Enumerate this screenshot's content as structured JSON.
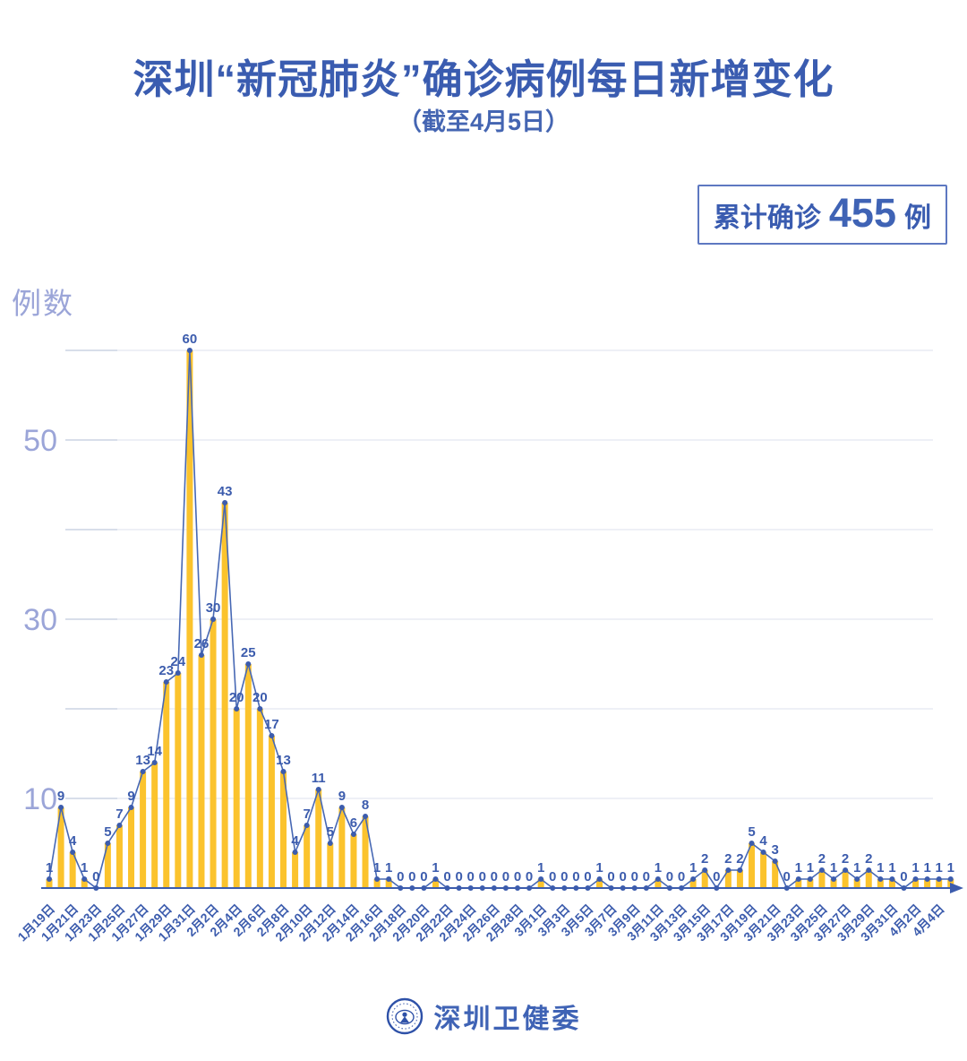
{
  "title": "深圳“新冠肺炎”确诊病例每日新增变化",
  "subtitle": "（截至4月5日）",
  "badge": {
    "prefix": "累计确诊",
    "number": "455",
    "suffix": "例"
  },
  "footer": {
    "org_name": "深圳卫健委",
    "logo": "shenzhen-health-commission-emblem"
  },
  "colors": {
    "accent_blue": "#3c5cad",
    "line_blue": "#4768b4",
    "bar_yellow": "#fbc32d",
    "axis_label_light": "#9ba5d8",
    "gridline": "#e9ecf3",
    "grid_dash": "#d5dae8"
  },
  "chart_data": {
    "type": "bar",
    "overlay": "line",
    "title": "深圳“新冠肺炎”确诊病例每日新增变化",
    "subtitle": "（截至4月5日）",
    "ylabel": "例数",
    "ylim": [
      0,
      62
    ],
    "yticks": [
      10,
      30,
      50
    ],
    "gridline_values": [
      10,
      20,
      30,
      40,
      50,
      60
    ],
    "legend": "none",
    "x_label_every": 2,
    "x_tick_labels": [
      "1月19日",
      "1月21日",
      "1月23日",
      "1月25日",
      "1月27日",
      "1月29日",
      "1月31日",
      "2月2日",
      "2月4日",
      "2月6日",
      "2月8日",
      "2月10日",
      "2月12日",
      "2月14日",
      "2月16日",
      "2月18日",
      "2月20日",
      "2月22日",
      "2月24日",
      "2月26日",
      "2月28日",
      "3月1日",
      "3月3日",
      "3月5日",
      "3月7日",
      "3月9日",
      "3月11日",
      "3月13日",
      "3月15日",
      "3月17日",
      "3月19日",
      "3月21日",
      "3月23日",
      "3月25日",
      "3月27日",
      "3月29日",
      "3月31日",
      "4月2日",
      "4月4日"
    ],
    "values": [
      1,
      9,
      4,
      1,
      0,
      5,
      7,
      9,
      13,
      14,
      23,
      24,
      60,
      26,
      30,
      43,
      20,
      25,
      20,
      17,
      13,
      4,
      7,
      11,
      5,
      9,
      6,
      8,
      1,
      1,
      0,
      0,
      0,
      1,
      0,
      0,
      0,
      0,
      0,
      0,
      0,
      0,
      1,
      0,
      0,
      0,
      0,
      1,
      0,
      0,
      0,
      0,
      1,
      0,
      0,
      1,
      2,
      0,
      2,
      2,
      5,
      4,
      3,
      0,
      1,
      1,
      2,
      1,
      2,
      1,
      2,
      1,
      1,
      0,
      1,
      1,
      1,
      1
    ],
    "cumulative_total": 455
  }
}
